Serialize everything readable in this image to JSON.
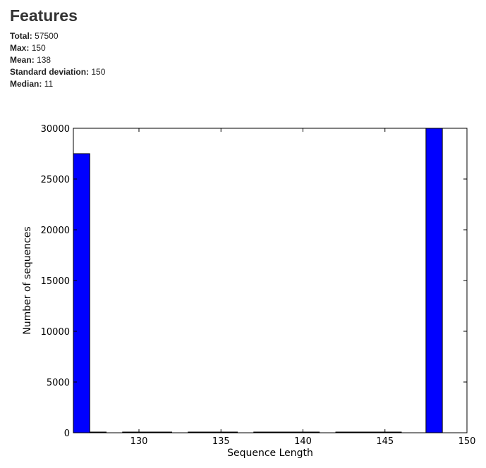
{
  "page": {
    "title": "Features"
  },
  "stats": [
    {
      "label": "Total",
      "value": "57500"
    },
    {
      "label": "Max",
      "value": "150"
    },
    {
      "label": "Mean",
      "value": "138"
    },
    {
      "label": "Standard deviation",
      "value": "150"
    },
    {
      "label": "Median",
      "value": "11"
    }
  ],
  "colors": {
    "bar": "#0000ff",
    "axis": "#000000"
  },
  "chart_data": {
    "type": "bar",
    "title": "",
    "xlabel": "Sequence Length",
    "ylabel": "Number of sequences",
    "xlim": [
      126,
      150
    ],
    "ylim": [
      0,
      30000
    ],
    "x_ticks": [
      130,
      135,
      140,
      145,
      150
    ],
    "y_ticks": [
      0,
      5000,
      10000,
      15000,
      20000,
      25000,
      30000
    ],
    "grid": false,
    "legend": "none",
    "bins": [
      {
        "x0": 126.0,
        "x1": 127.0,
        "count": 27500
      },
      {
        "x0": 127.0,
        "x1": 128.0,
        "count": 0
      },
      {
        "x0": 129.0,
        "x1": 130.0,
        "count": 0
      },
      {
        "x0": 130.0,
        "x1": 131.0,
        "count": 0
      },
      {
        "x0": 131.0,
        "x1": 132.0,
        "count": 0
      },
      {
        "x0": 133.0,
        "x1": 134.0,
        "count": 0
      },
      {
        "x0": 134.0,
        "x1": 135.0,
        "count": 0
      },
      {
        "x0": 135.0,
        "x1": 136.0,
        "count": 0
      },
      {
        "x0": 137.0,
        "x1": 138.0,
        "count": 0
      },
      {
        "x0": 138.0,
        "x1": 139.0,
        "count": 0
      },
      {
        "x0": 139.0,
        "x1": 140.0,
        "count": 0
      },
      {
        "x0": 140.0,
        "x1": 141.0,
        "count": 0
      },
      {
        "x0": 142.0,
        "x1": 143.0,
        "count": 0
      },
      {
        "x0": 143.0,
        "x1": 144.0,
        "count": 0
      },
      {
        "x0": 144.0,
        "x1": 145.0,
        "count": 0
      },
      {
        "x0": 145.0,
        "x1": 146.0,
        "count": 0
      },
      {
        "x0": 147.5,
        "x1": 148.5,
        "count": 30000
      }
    ]
  }
}
